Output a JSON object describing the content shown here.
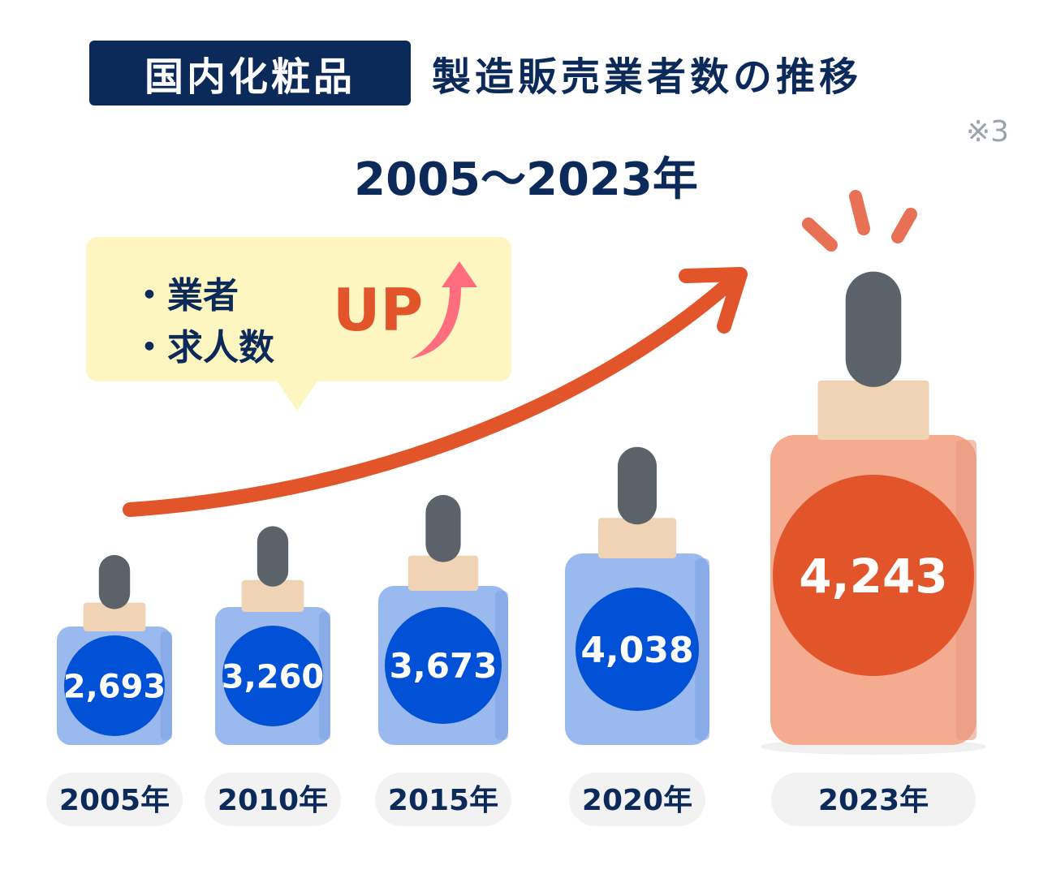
{
  "header": {
    "badge": "国内化粧品",
    "title": "製造販売業者数の推移",
    "note": "※3"
  },
  "period": "2005〜2023年",
  "callout": {
    "items": [
      "・業者",
      "・求人数"
    ],
    "up": "UP"
  },
  "colors": {
    "navy": "#0b2a5a",
    "blue_circle": "#0151d6",
    "blue_bottle": "#9ab9ee",
    "highlight_circle": "#e2552a",
    "highlight_bottle": "#f4ab90",
    "cap_dark": "#5b6269",
    "cap_beige": "#efd3b4",
    "arrow": "#e2552a",
    "bubble": "#fdf6c1"
  },
  "chart_data": {
    "type": "bar",
    "title": "製造販売業者数の推移",
    "categories": [
      "2005年",
      "2010年",
      "2015年",
      "2020年",
      "2023年"
    ],
    "values": [
      2693,
      3260,
      3673,
      4038,
      4243
    ],
    "value_labels": [
      "2,693",
      "3,260",
      "3,673",
      "4,038",
      "4,243"
    ],
    "highlight_index": 4
  }
}
